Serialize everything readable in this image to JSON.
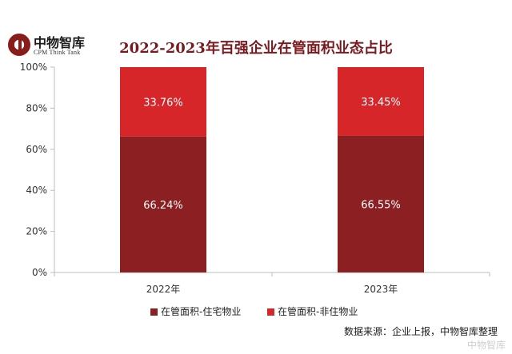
{
  "logo": {
    "cn": "中物智库",
    "en": "CPM Think Tank"
  },
  "watermark": "中物智库",
  "source": "数据来源：企业上报，中物智库整理",
  "colors": {
    "residential": "#8b1f22",
    "non_residential": "#d6262a",
    "title": "#7a1a1f"
  },
  "chart_data": {
    "type": "bar",
    "stacked": true,
    "title": "2022-2023年百强企业在管面积业态占比",
    "categories": [
      "2022年",
      "2023年"
    ],
    "series": [
      {
        "name": "在管面积-住宅物业",
        "values": [
          66.24,
          66.55
        ],
        "labels": [
          "66.24%",
          "66.55%"
        ]
      },
      {
        "name": "在管面积-非住物业",
        "values": [
          33.76,
          33.45
        ],
        "labels": [
          "33.76%",
          "33.45%"
        ]
      }
    ],
    "ylim": [
      0,
      100
    ],
    "yticks": [
      0,
      20,
      40,
      60,
      80,
      100
    ],
    "ytick_labels": [
      "0%",
      "20%",
      "40%",
      "60%",
      "80%",
      "100%"
    ],
    "grid": false,
    "legend_position": "bottom"
  }
}
